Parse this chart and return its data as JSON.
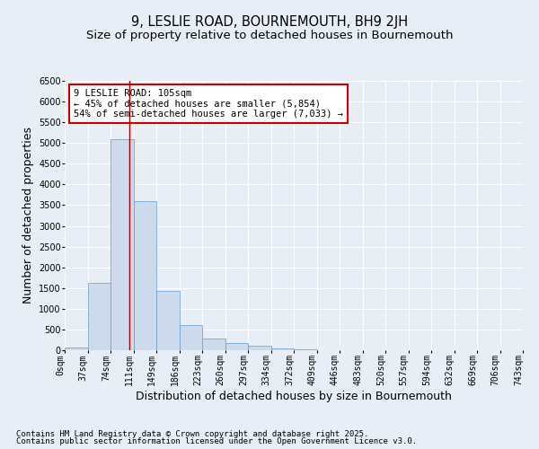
{
  "title": "9, LESLIE ROAD, BOURNEMOUTH, BH9 2JH",
  "subtitle": "Size of property relative to detached houses in Bournemouth",
  "xlabel": "Distribution of detached houses by size in Bournemouth",
  "ylabel": "Number of detached properties",
  "bar_values": [
    75,
    1620,
    5100,
    3600,
    1420,
    600,
    280,
    165,
    100,
    50,
    20,
    10,
    5,
    3,
    2,
    1,
    1,
    0,
    0,
    0
  ],
  "bar_color": "#ccdaec",
  "bar_edge_color": "#6699cc",
  "categories": [
    "0sqm",
    "37sqm",
    "74sqm",
    "111sqm",
    "149sqm",
    "186sqm",
    "223sqm",
    "260sqm",
    "297sqm",
    "334sqm",
    "372sqm",
    "409sqm",
    "446sqm",
    "483sqm",
    "520sqm",
    "557sqm",
    "594sqm",
    "632sqm",
    "669sqm",
    "706sqm",
    "743sqm"
  ],
  "ylim": [
    0,
    6500
  ],
  "yticks": [
    0,
    500,
    1000,
    1500,
    2000,
    2500,
    3000,
    3500,
    4000,
    4500,
    5000,
    5500,
    6000,
    6500
  ],
  "vline_x": 2.84,
  "vline_color": "#aa0000",
  "annotation_text": "9 LESLIE ROAD: 105sqm\n← 45% of detached houses are smaller (5,854)\n54% of semi-detached houses are larger (7,033) →",
  "annotation_box_color": "#ffffff",
  "annotation_edge_color": "#cc0000",
  "footer1": "Contains HM Land Registry data © Crown copyright and database right 2025.",
  "footer2": "Contains public sector information licensed under the Open Government Licence v3.0.",
  "background_color": "#e8eef5",
  "plot_background": "#e8eef5",
  "title_fontsize": 10.5,
  "subtitle_fontsize": 9.5,
  "axis_label_fontsize": 9,
  "tick_fontsize": 7,
  "annotation_fontsize": 7.5,
  "footer_fontsize": 6.5
}
